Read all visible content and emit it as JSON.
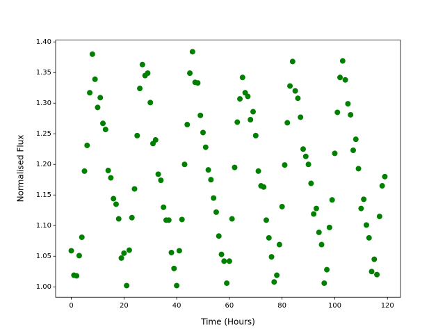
{
  "chart_data": {
    "type": "scatter",
    "x_label": "Time (Hours)",
    "y_label": "Normalised Flux",
    "color": "#008000",
    "xlim": [
      -5.95,
      124.95
    ],
    "ylim": [
      0.983,
      1.403
    ],
    "xticks": [
      0,
      20,
      40,
      60,
      80,
      100,
      120
    ],
    "yticks": [
      {
        "value": 1.0,
        "label": "1.00"
      },
      {
        "value": 1.05,
        "label": "1.05"
      },
      {
        "value": 1.1,
        "label": "1.10"
      },
      {
        "value": 1.15,
        "label": "1.15"
      },
      {
        "value": 1.2,
        "label": "1.20"
      },
      {
        "value": 1.25,
        "label": "1.25"
      },
      {
        "value": 1.3,
        "label": "1.30"
      },
      {
        "value": 1.35,
        "label": "1.35"
      },
      {
        "value": 1.4,
        "label": "1.40"
      }
    ],
    "x": [
      0,
      1,
      2,
      3,
      4,
      5,
      6,
      7,
      8,
      9,
      10,
      11,
      12,
      13,
      14,
      15,
      16,
      17,
      18,
      19,
      20,
      21,
      22,
      23,
      24,
      25,
      26,
      27,
      28,
      29,
      30,
      31,
      32,
      33,
      34,
      35,
      36,
      37,
      38,
      39,
      40,
      41,
      42,
      43,
      44,
      45,
      46,
      47,
      48,
      49,
      50,
      51,
      52,
      53,
      54,
      55,
      56,
      57,
      58,
      59,
      60,
      61,
      62,
      63,
      64,
      65,
      66,
      67,
      68,
      69,
      70,
      71,
      72,
      73,
      74,
      75,
      76,
      77,
      78,
      79,
      80,
      81,
      82,
      83,
      84,
      85,
      86,
      87,
      88,
      89,
      90,
      91,
      92,
      93,
      94,
      95,
      96,
      97,
      98,
      99,
      100,
      101,
      102,
      103,
      104,
      105,
      106,
      107,
      108,
      109,
      110,
      111,
      112,
      113,
      114,
      115,
      116,
      117,
      118,
      119
    ],
    "y": [
      1.059,
      1.019,
      1.018,
      1.051,
      1.081,
      1.189,
      1.231,
      1.317,
      1.38,
      1.339,
      1.293,
      1.309,
      1.267,
      1.257,
      1.19,
      1.178,
      1.144,
      1.135,
      1.111,
      1.047,
      1.055,
      1.002,
      1.06,
      1.113,
      1.16,
      1.247,
      1.324,
      1.363,
      1.345,
      1.349,
      1.301,
      1.234,
      1.24,
      1.184,
      1.174,
      1.13,
      1.109,
      1.109,
      1.056,
      1.03,
      1.002,
      1.059,
      1.11,
      1.2,
      1.265,
      1.349,
      1.384,
      1.334,
      1.333,
      1.28,
      1.252,
      1.228,
      1.191,
      1.175,
      1.145,
      1.122,
      1.083,
      1.053,
      1.042,
      1.006,
      1.042,
      1.111,
      1.195,
      1.269,
      1.307,
      1.342,
      1.317,
      1.311,
      1.273,
      1.286,
      1.247,
      1.189,
      1.165,
      1.163,
      1.109,
      1.08,
      1.049,
      1.008,
      1.019,
      1.069,
      1.131,
      1.199,
      1.268,
      1.328,
      1.368,
      1.32,
      1.308,
      1.277,
      1.225,
      1.213,
      1.2,
      1.169,
      1.119,
      1.128,
      1.089,
      1.069,
      1.006,
      1.028,
      1.097,
      1.142,
      1.218,
      1.285,
      1.342,
      1.369,
      1.338,
      1.299,
      1.281,
      1.223,
      1.241,
      1.193,
      1.128,
      1.143,
      1.101,
      1.08,
      1.025,
      1.045,
      1.02,
      1.115,
      1.165,
      1.18
    ]
  }
}
